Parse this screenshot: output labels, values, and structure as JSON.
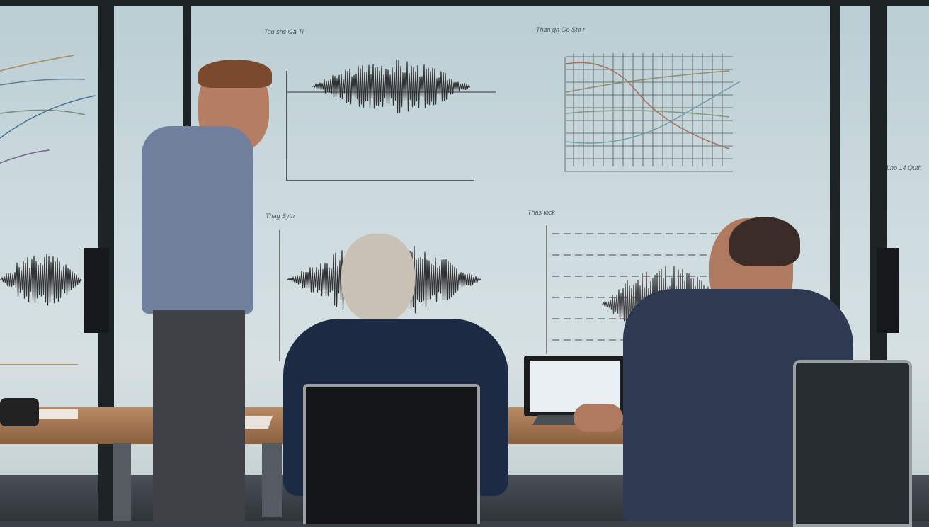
{
  "scene": {
    "description_free": true,
    "whiteboard_labels": [
      {
        "text": "Tou shs Ga Ti"
      },
      {
        "text": "Than gh Ge Sto r"
      },
      {
        "text": "Thag Syth"
      },
      {
        "text": "Thas tock"
      },
      {
        "text": "Lho 14 Quth"
      }
    ],
    "colors": {
      "wall": "#cddbdf",
      "frame": "#1e2326",
      "table": "#a77a55",
      "shirt_standing": "#6f7f9c",
      "jacket_seated": "#1d2a44",
      "shirt_right": "#2e3a52"
    }
  }
}
